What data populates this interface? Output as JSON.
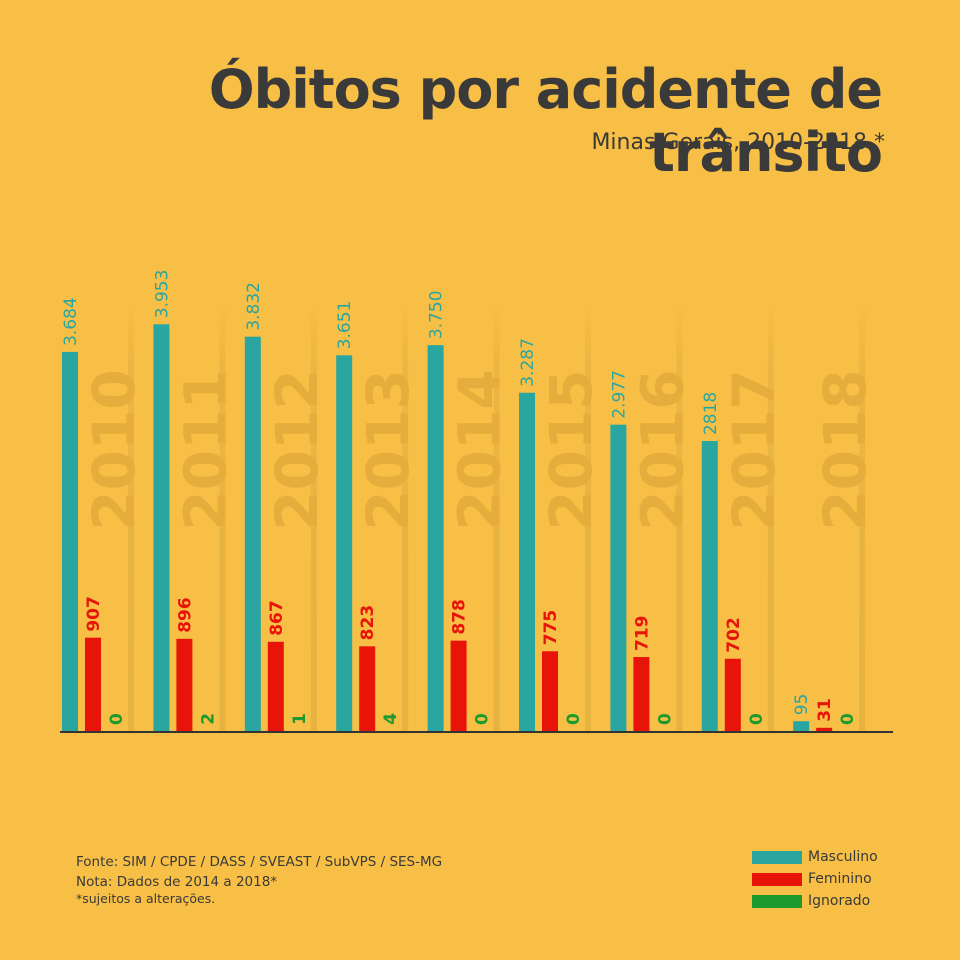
{
  "title": "Óbitos por acidente de trânsito",
  "subtitle": "Minas Gerais, 2010-2018 *",
  "notes": {
    "fonte": "Fonte: SIM / CPDE / DASS / SVEAST / SubVPS / SES-MG",
    "nota": "Nota: Dados de 2014 a 2018*",
    "sujeitos": "*sujeitos a alterações."
  },
  "colors": {
    "background": "#f7bf45",
    "masculino": "#2aa6a0",
    "feminino": "#e8140a",
    "ignorado": "#1c9a2e",
    "year_text": "#e4ad3c",
    "axis": "#333333"
  },
  "chart_data": {
    "type": "bar",
    "title": "Óbitos por acidente de trânsito",
    "subtitle": "Minas Gerais, 2010-2018 *",
    "categories": [
      "2010",
      "2011",
      "2012",
      "2013",
      "2014",
      "2015",
      "2016",
      "2017",
      "2018"
    ],
    "series": [
      {
        "name": "Masculino",
        "values": [
          3684,
          3953,
          3832,
          3651,
          3750,
          3287,
          2977,
          2818,
          95
        ],
        "labels": [
          "3.684",
          "3.953",
          "3.832",
          "3.651",
          "3.750",
          "3.287",
          "2.977",
          "2818",
          "95"
        ]
      },
      {
        "name": "Feminino",
        "values": [
          907,
          896,
          867,
          823,
          878,
          775,
          719,
          702,
          31
        ],
        "labels": [
          "907",
          "896",
          "867",
          "823",
          "878",
          "775",
          "719",
          "702",
          "31"
        ]
      },
      {
        "name": "Ignorado",
        "values": [
          0,
          2,
          1,
          4,
          0,
          0,
          0,
          0,
          0
        ],
        "labels": [
          "0",
          "2",
          "1",
          "4",
          "0",
          "0",
          "0",
          "0",
          "0"
        ]
      }
    ],
    "ylim": [
      0,
      4300
    ],
    "legend_position": "bottom-right",
    "grid": false
  }
}
